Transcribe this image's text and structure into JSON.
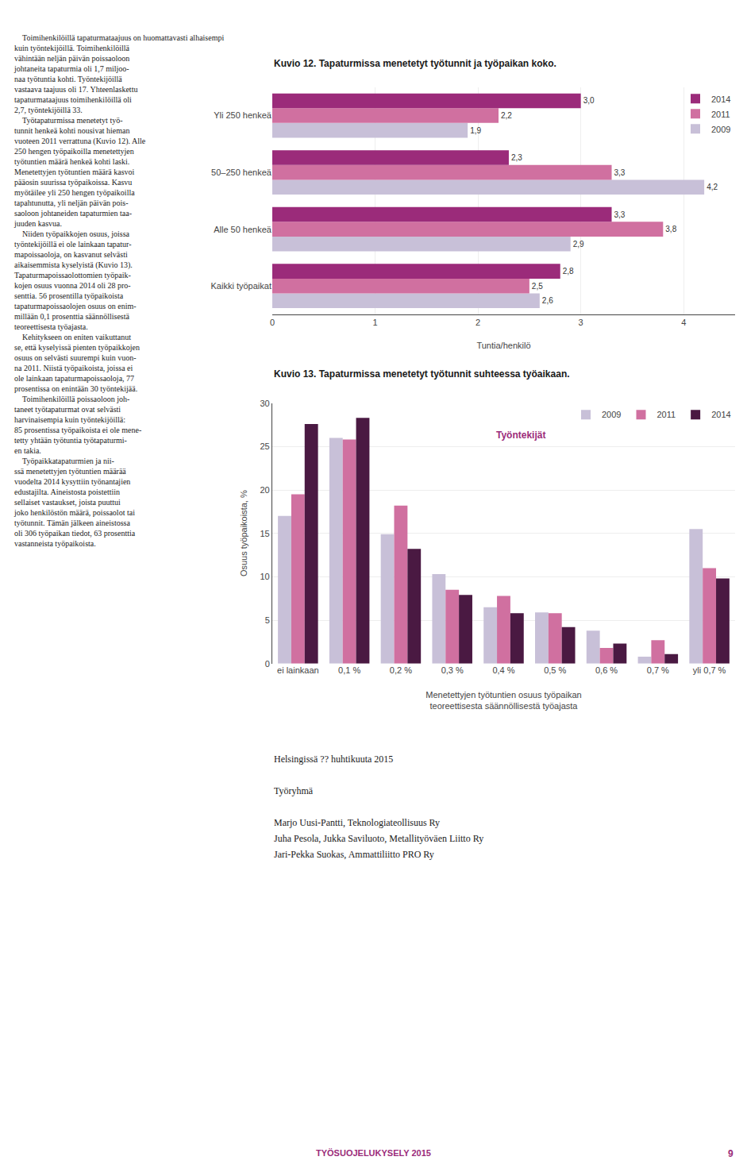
{
  "chart_data": [
    {
      "type": "bar",
      "orientation": "horizontal",
      "title": "Kuvio 12.",
      "subtitle": "Tapaturmissa menetetyt työtunnit ja työpaikan koko.",
      "categories": [
        "Kaikki työpaikat",
        "Alle 50 henkeä",
        "50–250 henkeä",
        "Yli 250 henkeä"
      ],
      "series": [
        {
          "name": "2014",
          "color": "#9b2b7a",
          "values": [
            2.8,
            3.3,
            2.3,
            3.0
          ],
          "value_labels": [
            "2,8",
            "3,3",
            "2,3",
            "3,0"
          ]
        },
        {
          "name": "2011",
          "color": "#d070a0",
          "values": [
            2.5,
            3.8,
            3.3,
            2.2
          ],
          "value_labels": [
            "2,5",
            "3,8",
            "3,3",
            "2,2"
          ]
        },
        {
          "name": "2009",
          "color": "#c8c0d8",
          "values": [
            2.6,
            2.9,
            4.2,
            1.9
          ],
          "value_labels": [
            "2,6",
            "2,9",
            "4,2",
            "1,9"
          ]
        }
      ],
      "xlabel": "Tuntia/henkilö",
      "xlim": [
        0,
        4.5
      ],
      "xticks": [
        0,
        1,
        2,
        3,
        4
      ],
      "grid": true,
      "data_labels": true,
      "legend": "upper right"
    },
    {
      "type": "bar",
      "title": "Kuvio 13.",
      "subtitle": "Tapaturmissa menetetyt työtunnit suhteessa työaikaan.",
      "categories": [
        "ei lainkaan",
        "0,1 %",
        "0,2 %",
        "0,3 %",
        "0,4 %",
        "0,5 %",
        "0,6 %",
        "0,7 %",
        "yli 0,7 %"
      ],
      "series": [
        {
          "name": "2009",
          "color": "#c8c0d8",
          "values": [
            17.0,
            26.0,
            14.9,
            10.3,
            6.5,
            5.9,
            3.8,
            0.8,
            15.5
          ]
        },
        {
          "name": "2011",
          "color": "#d070a0",
          "values": [
            19.5,
            25.8,
            18.2,
            8.5,
            7.8,
            5.8,
            1.8,
            2.7,
            11.0
          ]
        },
        {
          "name": "2014",
          "color": "#4a1942",
          "values": [
            27.6,
            28.3,
            13.2,
            7.9,
            5.8,
            4.2,
            2.3,
            1.1,
            9.8
          ]
        }
      ],
      "xlabel": "Menetettyjen työtuntien osuus työpaikan\nteoreettisesta säännöllisestä työajasta",
      "ylabel": "Osuus työpaikoista, %",
      "ylim": [
        0,
        30
      ],
      "yticks": [
        0,
        5,
        10,
        15,
        20,
        25,
        30
      ],
      "grid": true,
      "legend": "upper right",
      "annotations": [
        {
          "text": "Työntekijät",
          "color": "#9b2b7a"
        }
      ]
    }
  ],
  "annotations": [
    {
      "text": "    Toimihenkilöillä tapaturmataajuus on huomattavasti alhaisempi\nkuin työntekijöillä. Toimihenkilöillä\nvähintään neljän päivän poissaoloon\njohtaneita tapaturmia oli 1,7 miljoo-\nnaa työtuntia kohti. Työntekijöillä\nvastaava taajuus oli 17. Yhteenlaskettu\ntapaturmataajuus toimihenkilöillä oli\n2,7, työntekijöillä 33.\n    Työtapaturmissa menetetyt työ-\ntunnit henkeä kohti nousivat hieman\nvuoteen 2011 verrattuna (Kuvio 12). Alle\n250 hengen työpaikoilla menetettyjen\ntyötuntien määrä henkeä kohti laski.\nMenetettyjen työtuntien määrä kasvoi\npääosin suurissa työpaikoissa. Kasvu\nmyötäilee yli 250 hengen työpaikoilla\ntapahtunutta, yli neljän päivän pois-\nsaoloon johtaneiden tapaturmien taa-\njuuden kasvua.\n    Niiden työpaikkojen osuus, joissa\ntyöntekijöillä ei ole lainkaan tapatur-\nmapoissaoloja, on kasvanut selvästi\naikaisemmista kyselyistä (Kuvio 13).\nTapaturmapoissaolottomien työpaik-\nkojen osuus vuonna 2014 oli 28 pro-\nsenttia. 56 prosentilla työpaikoista\ntapaturmapoissaolojen osuus on enim-\nmillään 0,1 prosenttia säännöllisestä\nteoreettisesta työajasta.\n    Kehitykseen on eniten vaikuttanut\nse, että kyselyissä pienten työpaikkojen\nosuus on selvästi suurempi kuin vuon-\nna 2011. Niistä työpaikoista, joissa ei\nole lainkaan tapaturmapoissaoloja, 77\nprosentissa on enintään 30 työntekijää.\n    Toimihenkilöillä poissaoloon joh-\ntaneet työtapaturmat ovat selvästi\nharvinaisempia kuin työntekijöillä:\n85 prosentissa työpaikoista ei ole mene-\ntetty yhtään työtuntia työtapaturmi-\nen takia.\n    Työpaikkatapaturmien ja nii-\nssä menetettyjen työtuntien määrää\nvuodelta 2014 kysyttiin työnantajien\nedustajilta. Aineistosta poistettiin\nsellaiset vastaukset, joista puuttui\njoko henkilöstön määrä, poissaolot tai\ntyötunnit. Tämän jälkeen aineistossa\noli 306 työpaikan tiedot, 63 prosenttia\nvastanneista työpaikoista."
    },
    {
      "text": "Helsingissä ?? huhtikuuta 2015"
    },
    {
      "text": "Työryhmä"
    },
    {
      "text": "Marjo Uusi-Pantti, Teknologiateollisuus Ry\nJuha Pesola, Jukka Saviluoto, Metallityöväen Liitto Ry\nJari-Pekka Suokas, Ammattiliitto PRO Ry"
    },
    {
      "text": "TYÖSUOJELUKYSELY 2015",
      "color": "#9b2b7a"
    },
    {
      "text": "9",
      "color": "#9b2b7a"
    }
  ]
}
